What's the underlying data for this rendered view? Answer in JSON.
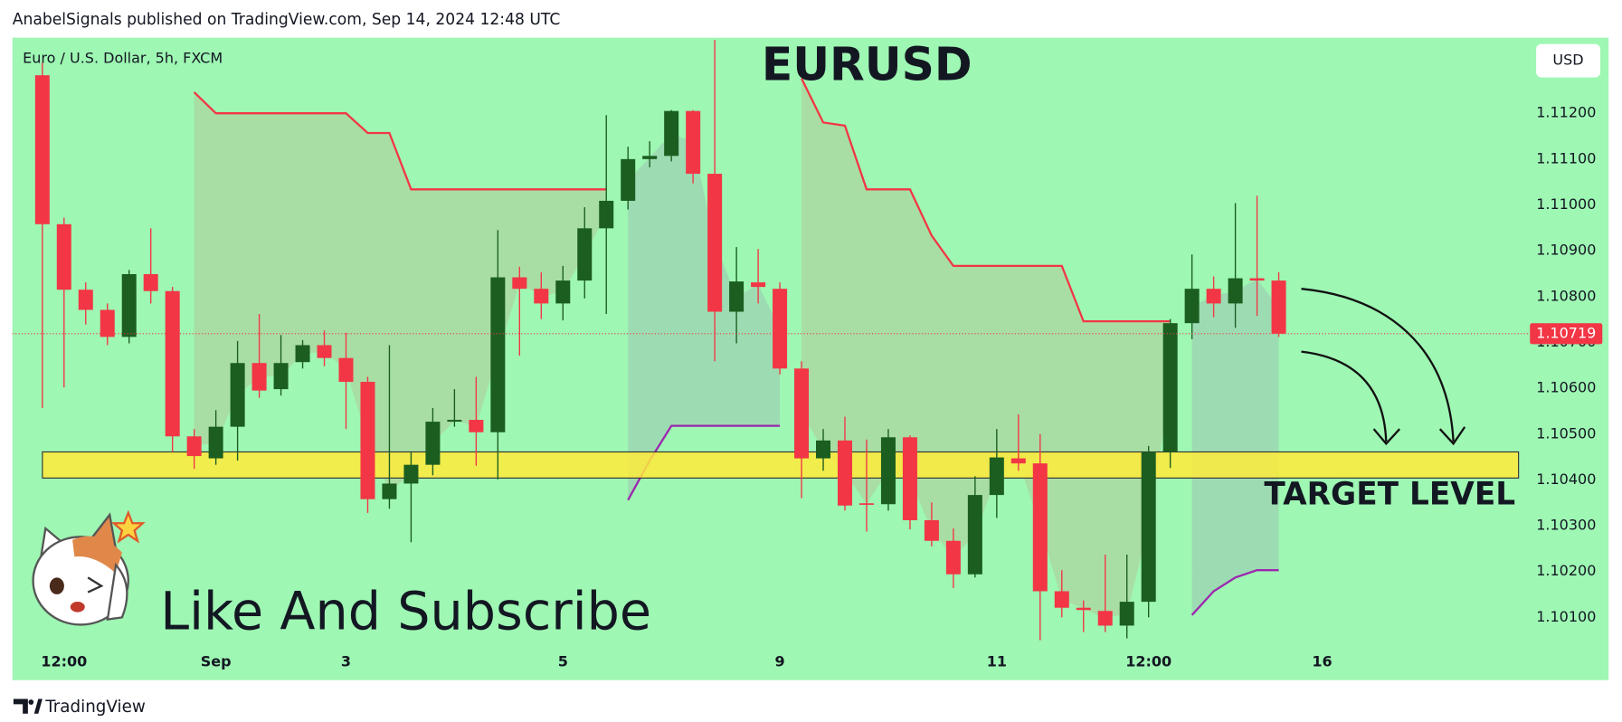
{
  "header": "AnabelSignals published on TradingView.com, Sep 14, 2024 12:48 UTC",
  "footer": "TradingView",
  "annotation": "Like And Subscribe",
  "chart_data": {
    "type": "candlestick",
    "title": "EURUSD",
    "symbol": "Euro / U.S. Dollar, 5h, FXCM",
    "currency": "USD",
    "x": [
      0,
      1,
      2,
      3,
      4,
      5,
      6,
      7,
      8,
      9,
      10,
      11,
      12,
      13,
      14,
      15,
      16,
      17,
      18,
      19,
      20,
      21,
      22,
      23,
      24,
      25,
      26,
      27,
      28,
      29,
      30,
      31,
      32,
      33,
      34,
      35,
      36,
      37,
      38,
      39,
      40,
      41,
      42,
      43,
      44,
      45,
      46,
      47,
      48,
      49,
      50,
      51,
      52,
      53,
      54,
      55,
      56,
      57
    ],
    "open": [
      1.11283,
      1.10958,
      1.10815,
      1.10771,
      1.10712,
      1.10849,
      1.10812,
      1.10495,
      1.10447,
      1.10516,
      1.10655,
      1.10598,
      1.10657,
      1.10694,
      1.10666,
      1.10614,
      1.10358,
      1.10392,
      1.10433,
      1.10527,
      1.10531,
      1.10504,
      1.10842,
      1.10817,
      1.10785,
      1.10835,
      1.10949,
      1.11009,
      1.111,
      1.11107,
      1.11205,
      1.11068,
      1.10767,
      1.10831,
      1.10817,
      1.10643,
      1.10447,
      1.10486,
      1.10349,
      1.10347,
      1.10493,
      1.10312,
      1.10267,
      1.10194,
      1.10367,
      1.10447,
      1.10436,
      1.10157,
      1.10121,
      1.10114,
      1.10082,
      1.10134,
      1.10461,
      1.10742,
      1.10817,
      1.10785,
      1.1084,
      1.10835
    ],
    "high": [
      1.1131,
      1.10972,
      1.10831,
      1.10785,
      1.10858,
      1.10949,
      1.10821,
      1.10511,
      1.10552,
      1.10703,
      1.10762,
      1.10716,
      1.10705,
      1.10726,
      1.10721,
      1.10625,
      1.10694,
      1.10461,
      1.10557,
      1.10598,
      1.10625,
      1.10945,
      1.10865,
      1.10853,
      1.10867,
      1.10995,
      1.11196,
      1.11127,
      1.11139,
      1.11207,
      1.11207,
      1.1136,
      1.10908,
      1.10904,
      1.10831,
      1.10659,
      1.10511,
      1.10538,
      1.10488,
      1.10511,
      1.10497,
      1.10351,
      1.10294,
      1.10408,
      1.10511,
      1.10543,
      1.105,
      1.10203,
      1.10137,
      1.10237,
      1.10237,
      1.10474,
      1.10751,
      1.10892,
      1.10844,
      1.11004,
      1.1102,
      1.10853
    ],
    "low": [
      1.10557,
      1.10602,
      1.10739,
      1.10694,
      1.10698,
      1.10785,
      1.10461,
      1.10424,
      1.10433,
      1.10442,
      1.10579,
      1.10584,
      1.10643,
      1.10648,
      1.10511,
      1.10328,
      1.10337,
      1.10264,
      1.1041,
      1.10516,
      1.10431,
      1.10401,
      1.10671,
      1.10751,
      1.10748,
      1.10796,
      1.10762,
      1.1099,
      1.11082,
      1.11095,
      1.11047,
      1.10659,
      1.10698,
      1.10785,
      1.1063,
      1.1036,
      1.1042,
      1.10333,
      1.10287,
      1.10333,
      1.10292,
      1.10255,
      1.10164,
      1.10187,
      1.10317,
      1.1042,
      1.1005,
      1.101,
      1.10068,
      1.10068,
      1.10054,
      1.101,
      1.10426,
      1.10707,
      1.10755,
      1.10732,
      1.10758,
      1.10712
    ],
    "close": [
      1.10958,
      1.10815,
      1.10771,
      1.10712,
      1.10849,
      1.10812,
      1.10495,
      1.10452,
      1.10516,
      1.10655,
      1.10595,
      1.10655,
      1.10694,
      1.10666,
      1.10614,
      1.10358,
      1.10392,
      1.10433,
      1.10527,
      1.10531,
      1.10504,
      1.10842,
      1.10817,
      1.10785,
      1.10835,
      1.10949,
      1.11009,
      1.111,
      1.11107,
      1.11205,
      1.11068,
      1.10767,
      1.10833,
      1.10821,
      1.10643,
      1.10447,
      1.10486,
      1.10344,
      1.10347,
      1.10493,
      1.10312,
      1.10267,
      1.10194,
      1.10367,
      1.10449,
      1.10436,
      1.10157,
      1.10121,
      1.10116,
      1.10082,
      1.10134,
      1.10461,
      1.10742,
      1.10817,
      1.10785,
      1.1084,
      1.10835,
      1.10719
    ],
    "up_color": "#1b5e20",
    "down_color": "#f23645",
    "supertrend_upper": {
      "color": "#f23645",
      "values": [
        null,
        null,
        null,
        null,
        null,
        null,
        null,
        1.11246,
        1.112,
        1.112,
        1.112,
        1.112,
        1.112,
        1.112,
        1.112,
        1.11157,
        1.11157,
        1.11034,
        1.11034,
        1.11034,
        1.11034,
        1.11034,
        1.11034,
        1.11034,
        1.11034,
        1.11034,
        1.11034,
        null,
        null,
        null,
        null,
        null,
        null,
        null,
        null,
        1.11276,
        1.1118,
        1.11173,
        1.11034,
        1.11034,
        1.11034,
        1.10933,
        1.10867,
        1.10867,
        1.10867,
        1.10867,
        1.10867,
        1.10867,
        1.10746,
        1.10746,
        1.10746,
        1.10746,
        1.10746,
        null,
        null,
        null,
        null,
        null
      ]
    },
    "supertrend_lower": {
      "color": "#9c27b0",
      "values": [
        null,
        null,
        null,
        null,
        null,
        null,
        null,
        null,
        null,
        null,
        null,
        null,
        null,
        null,
        null,
        null,
        null,
        null,
        null,
        null,
        null,
        null,
        null,
        null,
        null,
        null,
        null,
        1.10356,
        1.10442,
        1.10518,
        1.10518,
        1.10518,
        1.10518,
        1.10518,
        1.10518,
        null,
        null,
        null,
        null,
        null,
        null,
        null,
        null,
        null,
        null,
        null,
        null,
        null,
        null,
        null,
        null,
        null,
        null,
        1.10105,
        1.10157,
        1.10187,
        1.10203,
        1.10203
      ]
    },
    "target_zone": {
      "label": "TARGET LEVEL",
      "range": [
        1.10404,
        1.10461
      ],
      "color": "#ffeb3b"
    },
    "xlim": [
      -1.38,
      68.39
    ],
    "ylim": [
      1.09963,
      1.11365
    ],
    "xticks": [
      {
        "value": 1,
        "label": "12:00"
      },
      {
        "value": 8,
        "label": "Sep"
      },
      {
        "value": 14,
        "label": "3"
      },
      {
        "value": 24,
        "label": "5"
      },
      {
        "value": 34,
        "label": "9"
      },
      {
        "value": 44,
        "label": "11"
      },
      {
        "value": 51,
        "label": "12:00"
      },
      {
        "value": 59,
        "label": "16"
      }
    ],
    "yticks": [
      {
        "value": 1.101,
        "label": "1.10100"
      },
      {
        "value": 1.102,
        "label": "1.10200"
      },
      {
        "value": 1.103,
        "label": "1.10300"
      },
      {
        "value": 1.104,
        "label": "1.10400"
      },
      {
        "value": 1.105,
        "label": "1.10500"
      },
      {
        "value": 1.106,
        "label": "1.10600"
      },
      {
        "value": 1.107,
        "label": "1.10700"
      },
      {
        "value": 1.108,
        "label": "1.10800"
      },
      {
        "value": 1.109,
        "label": "1.10900"
      },
      {
        "value": 1.11,
        "label": "1.11000"
      },
      {
        "value": 1.111,
        "label": "1.11100"
      },
      {
        "value": 1.112,
        "label": "1.11200"
      }
    ],
    "grid": false
  }
}
